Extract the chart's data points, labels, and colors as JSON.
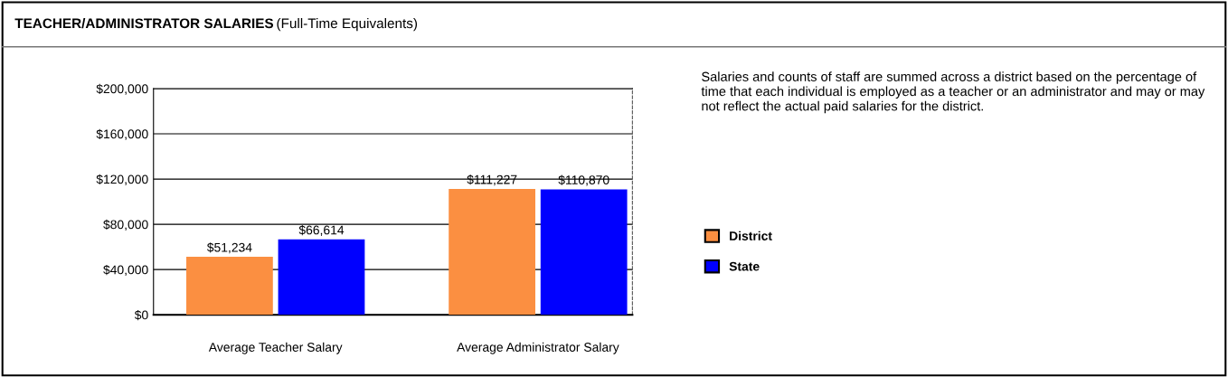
{
  "chart_data": {
    "type": "bar",
    "title": "TEACHER/ADMINISTRATOR SALARIES",
    "subtitle": "(Full-Time Equivalents)",
    "categories": [
      "Average Teacher Salary",
      "Average Administrator Salary"
    ],
    "series": [
      {
        "name": "District",
        "color": "#fb8f41",
        "values": [
          51234,
          111227
        ],
        "value_labels": [
          "$51,234",
          "$111,227"
        ]
      },
      {
        "name": "State",
        "color": "#0000ff",
        "values": [
          66614,
          110870
        ],
        "value_labels": [
          "$66,614",
          "$110,870"
        ]
      }
    ],
    "ylim": [
      0,
      200000
    ],
    "yticks": [
      {
        "value": 0,
        "label": "$0"
      },
      {
        "value": 40000,
        "label": "$40,000"
      },
      {
        "value": 80000,
        "label": "$80,000"
      },
      {
        "value": 120000,
        "label": "$120,000"
      },
      {
        "value": 160000,
        "label": "$160,000"
      },
      {
        "value": 200000,
        "label": "$200,000"
      }
    ],
    "grid": "y",
    "legend": "right",
    "annotations": [
      "Salaries and counts of staff are summed across a district based on the percentage of time that each individual is employed as a teacher or an administrator and may or may not reflect the actual paid salaries for the district."
    ]
  }
}
